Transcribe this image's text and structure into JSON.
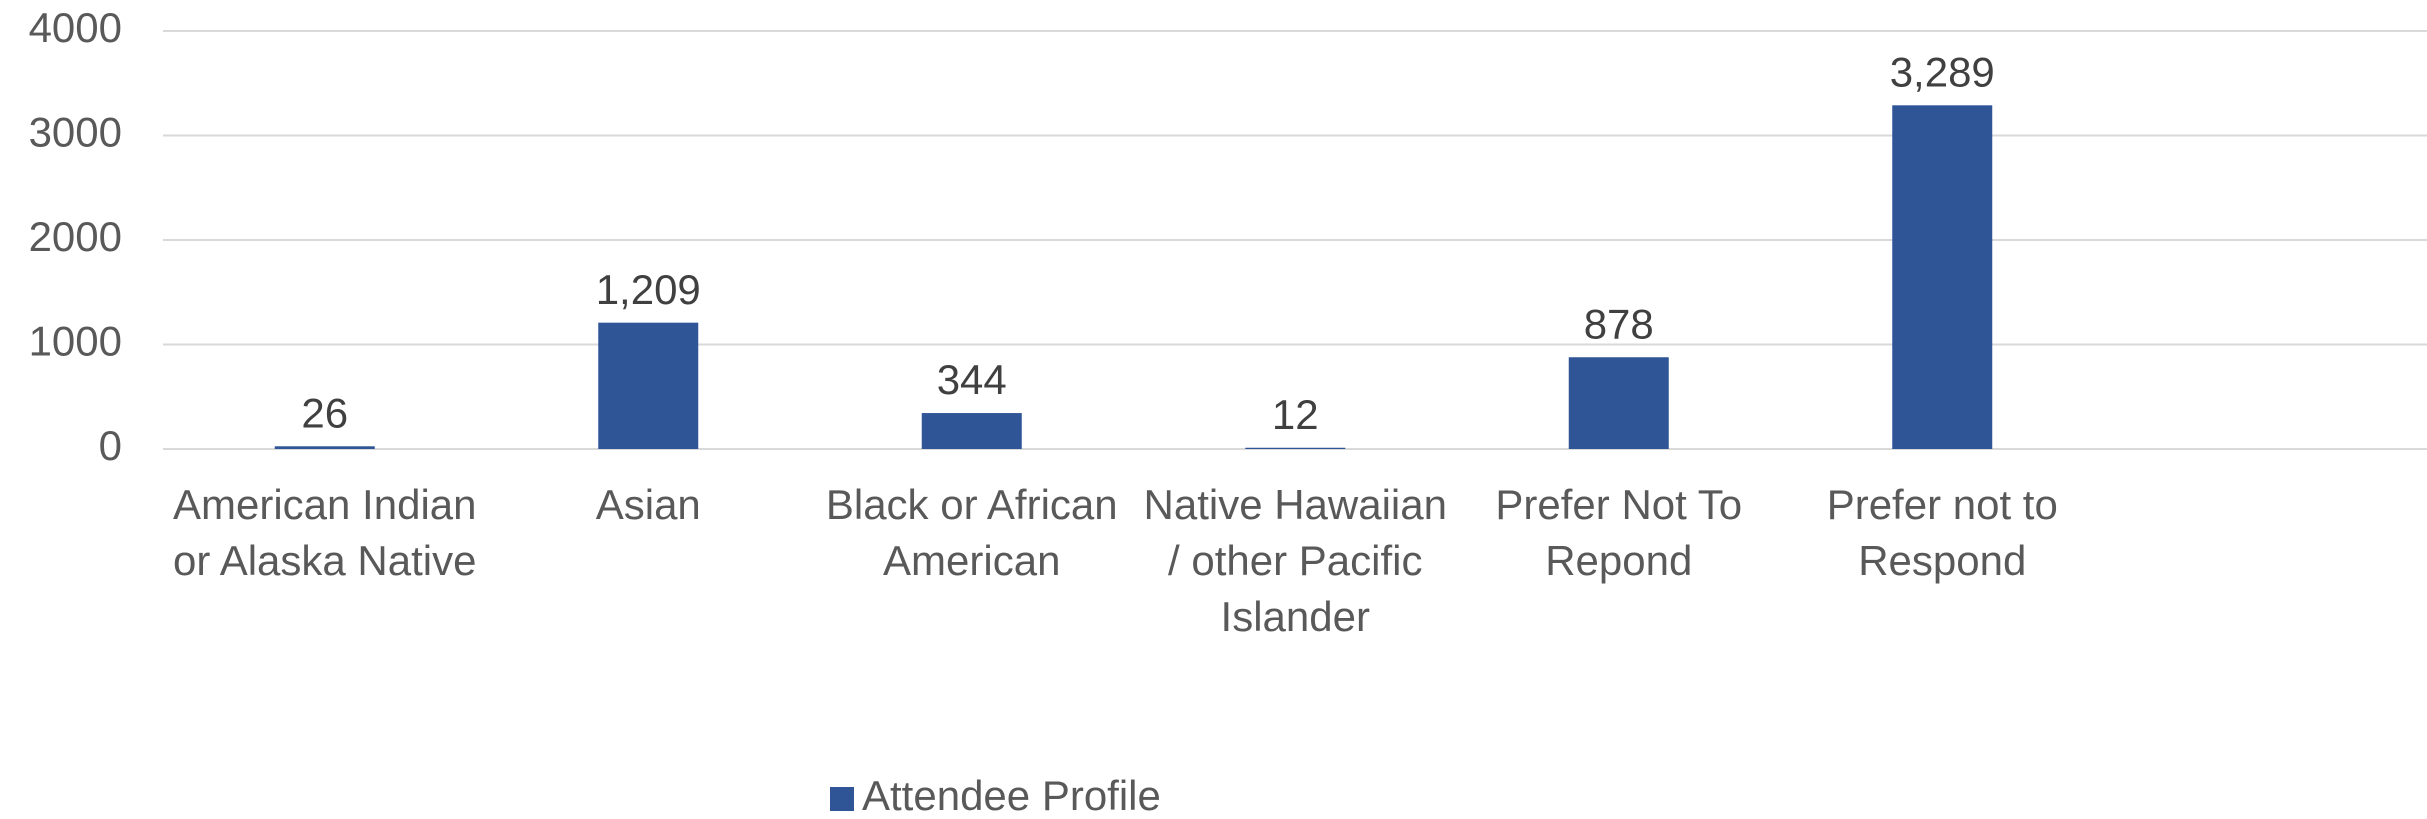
{
  "chart_data": {
    "type": "bar",
    "categories": [
      "American Indian or Alaska Native",
      "Asian",
      "Black or African American",
      "Native Hawaiian / other Pacific Islander",
      "Prefer Not To Repond",
      "Prefer not to Respond"
    ],
    "series": [
      {
        "name": "Attendee Profile",
        "color": "#2f5597",
        "values": [
          26,
          1209,
          344,
          12,
          878,
          3289
        ],
        "value_labels": [
          "26",
          "1,209",
          "344",
          "12",
          "878",
          "3,289"
        ]
      }
    ],
    "ylim": [
      0,
      4000
    ],
    "yticks": [
      0,
      1000,
      2000,
      3000,
      4000
    ],
    "grid": true,
    "legend": "bottom"
  }
}
